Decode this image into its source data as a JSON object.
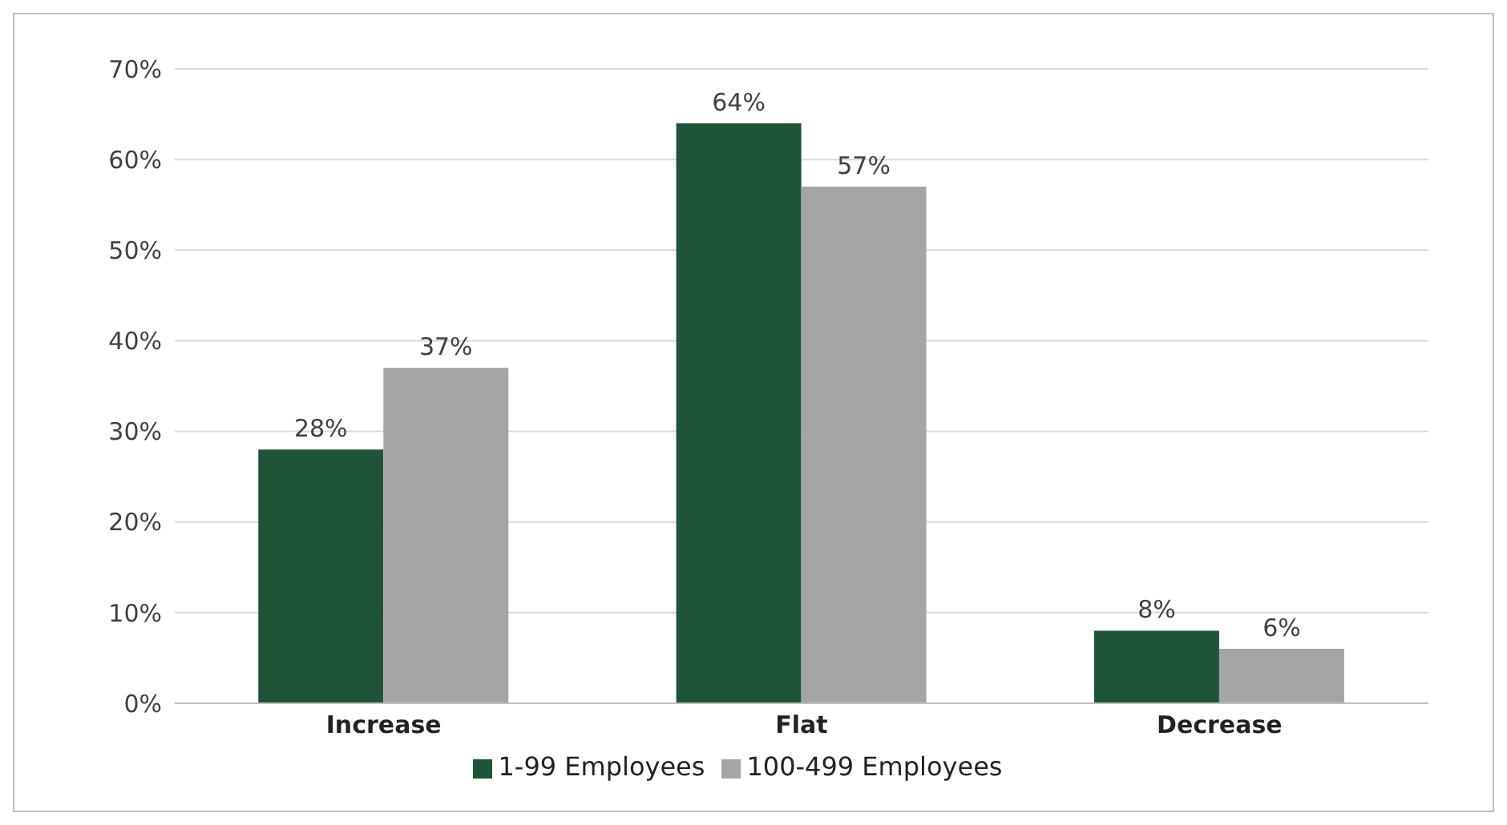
{
  "chart_data": {
    "type": "bar",
    "categories": [
      "Increase",
      "Flat",
      "Decrease"
    ],
    "series": [
      {
        "name": "1-99 Employees",
        "color": "#1e5438",
        "values": [
          28,
          64,
          8
        ],
        "value_labels": [
          "28%",
          "64%",
          "8%"
        ]
      },
      {
        "name": "100-499 Employees",
        "color": "#a5a5a8",
        "values": [
          37,
          57,
          6
        ],
        "value_labels": [
          "37%",
          "57%",
          "6%"
        ]
      }
    ],
    "ylim": [
      0,
      70
    ],
    "yticks": [
      {
        "value": 0,
        "label": "0%"
      },
      {
        "value": 10,
        "label": "10%"
      },
      {
        "value": 20,
        "label": "20%"
      },
      {
        "value": 30,
        "label": "30%"
      },
      {
        "value": 40,
        "label": "40%"
      },
      {
        "value": 50,
        "label": "50%"
      },
      {
        "value": 60,
        "label": "60%"
      },
      {
        "value": 70,
        "label": "70%"
      }
    ],
    "grid": "y",
    "legend": "bottom"
  }
}
